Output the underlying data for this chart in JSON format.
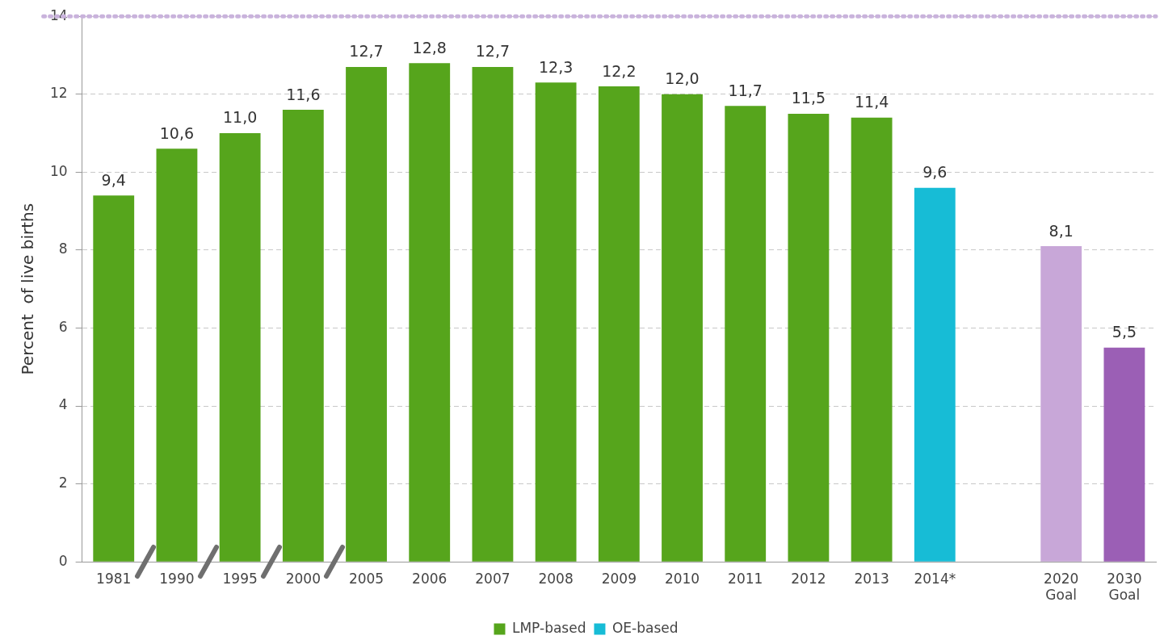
{
  "chart_data": {
    "type": "bar",
    "ylabel": "Percent  of live births",
    "categories": [
      "1981",
      "1990",
      "1995",
      "2000",
      "2005",
      "2006",
      "2007",
      "2008",
      "2009",
      "2010",
      "2011",
      "2012",
      "2013",
      "2014*",
      null,
      "2020\nGoal",
      "2030\nGoal"
    ],
    "series": [
      {
        "name": "LMP-based",
        "color": "#56a51c",
        "values": [
          9.4,
          10.6,
          11.0,
          11.6,
          12.7,
          12.8,
          12.7,
          12.3,
          12.2,
          12.0,
          11.7,
          11.5,
          11.4,
          null,
          null,
          null,
          null
        ],
        "value_labels": [
          "9,4",
          "10,6",
          "11,0",
          "11,6",
          "12,7",
          "12,8",
          "12,7",
          "12,3",
          "12,2",
          "12,0",
          "11,7",
          "11,5",
          "11,4",
          null,
          null,
          null,
          null
        ]
      },
      {
        "name": "OE-based",
        "color": "#17bcd6",
        "values": [
          null,
          null,
          null,
          null,
          null,
          null,
          null,
          null,
          null,
          null,
          null,
          null,
          null,
          9.6,
          null,
          null,
          null
        ],
        "value_labels": [
          null,
          null,
          null,
          null,
          null,
          null,
          null,
          null,
          null,
          null,
          null,
          null,
          null,
          "9,6",
          null,
          null,
          null
        ]
      },
      {
        "colors": [
          null,
          null,
          null,
          null,
          null,
          null,
          null,
          null,
          null,
          null,
          null,
          null,
          null,
          null,
          null,
          "#c8a7d8",
          "#9b5fb5"
        ],
        "values": [
          null,
          null,
          null,
          null,
          null,
          null,
          null,
          null,
          null,
          null,
          null,
          null,
          null,
          null,
          null,
          8.1,
          5.5
        ],
        "value_labels": [
          null,
          null,
          null,
          null,
          null,
          null,
          null,
          null,
          null,
          null,
          null,
          null,
          null,
          null,
          null,
          "8,1",
          "5,5"
        ]
      }
    ],
    "ylim": [
      0,
      14
    ],
    "yticks": [
      0,
      2,
      4,
      6,
      8,
      10,
      12,
      14
    ],
    "grid": "y",
    "legend": "bottom",
    "ref_lines": [
      {
        "axis": "y",
        "value": 14,
        "color": "#c9b3dc",
        "line_style": "dotted"
      }
    ]
  }
}
